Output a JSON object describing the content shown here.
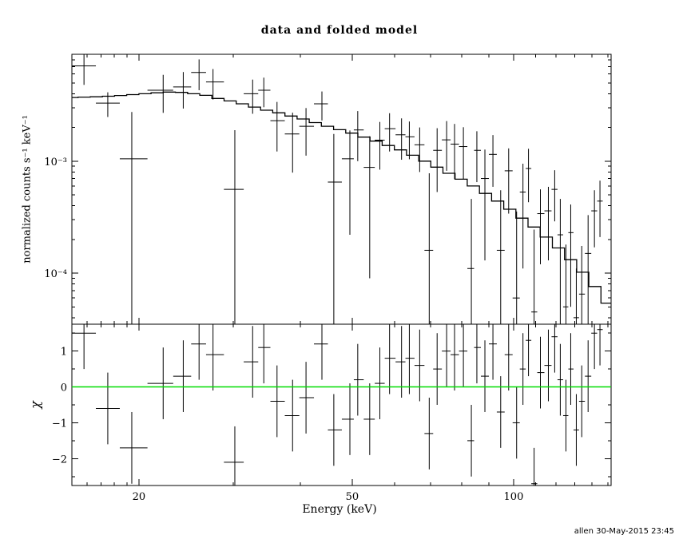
{
  "footer": {
    "timestamp": "allen 30-May-2015 23:45"
  },
  "colors": {
    "background": "#ffffff",
    "frame": "#000000",
    "data": "#000000",
    "model": "#000000",
    "zero_line": "#00dd00"
  },
  "chart_data": {
    "type": "line",
    "title": "data and folded model",
    "xlabel": "Energy (keV)",
    "ylabel_top": "normalized counts s⁻¹ keV⁻¹",
    "ylabel_bottom": "χ",
    "x_scale": "log",
    "xlim": [
      15,
      152
    ],
    "x_major_ticks": [
      20,
      50,
      100
    ],
    "x_minor_ticks": [
      16,
      17,
      18,
      19,
      30,
      40,
      60,
      70,
      80,
      90,
      110,
      120,
      130,
      140,
      150
    ],
    "panels": [
      {
        "name": "spectrum",
        "y_scale": "log",
        "ylim": [
          3.5e-05,
          0.009
        ],
        "y_major_ticks": [
          0.0001,
          0.001
        ]
      },
      {
        "name": "residuals",
        "y_scale": "linear",
        "ylim": [
          -2.75,
          1.75
        ],
        "y_major_ticks": [
          -2,
          -1,
          0,
          1
        ],
        "y_minor_ticks": [
          -2.5,
          -1.5,
          -0.5,
          0.5,
          1.5
        ],
        "residual_error": 1
      }
    ],
    "model": {
      "energies": [
        15.0,
        15.81,
        16.66,
        17.55,
        18.49,
        19.49,
        20.53,
        21.63,
        22.79,
        24.02,
        25.31,
        26.66,
        28.09,
        29.6,
        31.19,
        32.86,
        34.62,
        36.48,
        38.44,
        40.5,
        42.67,
        44.96,
        47.37,
        49.91,
        52.58,
        55.4,
        58.37,
        61.5,
        64.8,
        68.27,
        71.93,
        75.78,
        79.84,
        84.12,
        88.63,
        93.38,
        98.38,
        103.66,
        109.21,
        115.06,
        121.23,
        127.73,
        134.57,
        141.78,
        149.38
      ],
      "values": [
        0.0037,
        0.00373,
        0.00376,
        0.0038,
        0.00386,
        0.00393,
        0.004,
        0.00408,
        0.00414,
        0.00411,
        0.004,
        0.00387,
        0.00363,
        0.00345,
        0.00325,
        0.00304,
        0.00285,
        0.0027,
        0.00253,
        0.00238,
        0.00221,
        0.00205,
        0.00191,
        0.00178,
        0.00164,
        0.00151,
        0.00138,
        0.00126,
        0.00113,
        0.001,
        0.000885,
        0.00078,
        0.00069,
        0.0006,
        0.000515,
        0.00044,
        0.000372,
        0.00031,
        0.000258,
        0.00021,
        0.000168,
        0.000132,
        0.000102,
        7.6e-05,
        5.4e-05
      ]
    },
    "data_points": [
      {
        "e": 15.8,
        "y": 0.0071,
        "err": 0.0023,
        "chi": 1.5
      },
      {
        "e": 17.5,
        "y": 0.0033,
        "err": 0.00082,
        "chi": -0.6
      },
      {
        "e": 19.4,
        "y": 0.00105,
        "err": 0.0017,
        "chi": -1.7
      },
      {
        "e": 22.2,
        "y": 0.0043,
        "err": 0.0016,
        "chi": 0.1
      },
      {
        "e": 24.2,
        "y": 0.0046,
        "err": 0.00165,
        "chi": 0.3
      },
      {
        "e": 25.9,
        "y": 0.0062,
        "err": 0.0019,
        "chi": 1.2
      },
      {
        "e": 27.5,
        "y": 0.0051,
        "err": 0.00155,
        "chi": 0.9
      },
      {
        "e": 30.2,
        "y": 0.00056,
        "err": 0.00133,
        "chi": -2.1
      },
      {
        "e": 32.6,
        "y": 0.004,
        "err": 0.00135,
        "chi": 0.7
      },
      {
        "e": 34.2,
        "y": 0.0043,
        "err": 0.00127,
        "chi": 1.1
      },
      {
        "e": 36.2,
        "y": 0.0023,
        "err": 0.00108,
        "chi": -0.4
      },
      {
        "e": 38.7,
        "y": 0.00175,
        "err": 0.00096,
        "chi": -0.8
      },
      {
        "e": 41.0,
        "y": 0.00205,
        "err": 0.00093,
        "chi": -0.3
      },
      {
        "e": 43.9,
        "y": 0.00325,
        "err": 0.00094,
        "chi": 1.2
      },
      {
        "e": 46.2,
        "y": 0.00065,
        "err": 0.0011,
        "chi": -1.2
      },
      {
        "e": 49.5,
        "y": 0.00105,
        "err": 0.00083,
        "chi": -0.9
      },
      {
        "e": 51.2,
        "y": 0.0019,
        "err": 0.0009,
        "chi": 0.2
      },
      {
        "e": 53.9,
        "y": 0.00088,
        "err": 0.00079,
        "chi": -0.9
      },
      {
        "e": 56.3,
        "y": 0.00154,
        "err": 0.0007,
        "chi": 0.1
      },
      {
        "e": 58.7,
        "y": 0.00195,
        "err": 0.00073,
        "chi": 0.8
      },
      {
        "e": 61.8,
        "y": 0.00172,
        "err": 0.00069,
        "chi": 0.7
      },
      {
        "e": 63.9,
        "y": 0.00165,
        "err": 0.00061,
        "chi": 0.8
      },
      {
        "e": 66.8,
        "y": 0.0014,
        "err": 0.0006,
        "chi": 0.6
      },
      {
        "e": 69.6,
        "y": 0.00016,
        "err": 0.00062,
        "chi": -1.3
      },
      {
        "e": 72.0,
        "y": 0.00125,
        "err": 0.00072,
        "chi": 0.5
      },
      {
        "e": 75.0,
        "y": 0.00155,
        "err": 0.00073,
        "chi": 1.0
      },
      {
        "e": 77.6,
        "y": 0.00142,
        "err": 0.00073,
        "chi": 0.9
      },
      {
        "e": 80.6,
        "y": 0.00135,
        "err": 0.00066,
        "chi": 1.0
      },
      {
        "e": 83.4,
        "y": 0.00011,
        "err": 0.00035,
        "chi": -1.5
      },
      {
        "e": 85.4,
        "y": 0.00125,
        "err": 0.0006,
        "chi": 1.1
      },
      {
        "e": 88.4,
        "y": 0.0007,
        "err": 0.00057,
        "chi": 0.3
      },
      {
        "e": 91.5,
        "y": 0.00115,
        "err": 0.00056,
        "chi": 1.2
      },
      {
        "e": 94.6,
        "y": 0.00016,
        "err": 0.00039,
        "chi": -0.7
      },
      {
        "e": 97.9,
        "y": 0.00082,
        "err": 0.00048,
        "chi": 0.9
      },
      {
        "e": 101.3,
        "y": 6e-05,
        "err": 0.000295,
        "chi": -1.0
      },
      {
        "e": 104.1,
        "y": 0.00053,
        "err": 0.00042,
        "chi": 0.5
      },
      {
        "e": 106.6,
        "y": 0.00086,
        "err": 0.00043,
        "chi": 1.3
      },
      {
        "e": 109.2,
        "y": 4.5e-05,
        "err": 0.0002,
        "chi": -2.7
      },
      {
        "e": 112.2,
        "y": 0.00034,
        "err": 0.00022,
        "chi": 0.4
      },
      {
        "e": 116.1,
        "y": 0.00036,
        "err": 0.00023,
        "chi": 0.6
      },
      {
        "e": 119.3,
        "y": 0.00056,
        "err": 0.00027,
        "chi": 1.4
      },
      {
        "e": 122.2,
        "y": 0.00022,
        "err": 0.00024,
        "chi": 0.2
      },
      {
        "e": 125.2,
        "y": 5e-05,
        "err": 0.00013,
        "chi": -0.8
      },
      {
        "e": 127.8,
        "y": 0.00023,
        "err": 0.00018,
        "chi": 0.5
      },
      {
        "e": 130.9,
        "y": 4e-05,
        "err": 7e-05,
        "chi": -1.2
      },
      {
        "e": 134.0,
        "y": 6.5e-05,
        "err": 0.00011,
        "chi": -0.4
      },
      {
        "e": 137.7,
        "y": 0.00015,
        "err": 0.00018,
        "chi": 0.3
      },
      {
        "e": 141.5,
        "y": 0.00036,
        "err": 0.00019,
        "chi": 1.5
      },
      {
        "e": 144.9,
        "y": 0.00044,
        "err": 0.00023,
        "chi": 1.6
      }
    ]
  }
}
